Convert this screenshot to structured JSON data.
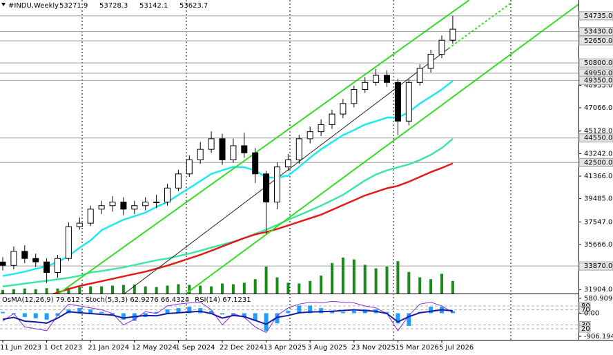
{
  "chart_data": [
    {
      "type": "candlestick",
      "title": "#INDU,Weekly",
      "header_values": [
        "53271.9",
        "53728.3",
        "53142.1",
        "53623.7"
      ],
      "categories": [
        "11 Jun 2023",
        null,
        null,
        null,
        "1 Oct 2023",
        null,
        null,
        null,
        "21 Jan 2024",
        null,
        null,
        null,
        "12 May 2024",
        null,
        null,
        null,
        "1 Sep 2024",
        null,
        null,
        null,
        "22 Dec 2024",
        null,
        null,
        null,
        "13 Apr 2025",
        null,
        null,
        null,
        "3 Aug 2025",
        null,
        null,
        null,
        "23 Nov 2025",
        null,
        null,
        null,
        "15 Mar 2026",
        null,
        null,
        null,
        "5 Jul 2026",
        null
      ],
      "open": [
        34200,
        33920,
        35090,
        34500,
        34210,
        33330,
        34500,
        37150,
        37440,
        38610,
        38900,
        39200,
        38610,
        38900,
        39200,
        39200,
        40370,
        41550,
        42720,
        43600,
        44480,
        42720,
        43900,
        43310,
        41550,
        39200,
        42130,
        42720,
        44480,
        45070,
        45660,
        46540,
        47420,
        48590,
        49180,
        49770,
        49180,
        45950,
        49180,
        50350,
        51530,
        52700
      ],
      "high": [
        34600,
        35500,
        35600,
        34900,
        34500,
        34800,
        37500,
        37900,
        38900,
        39300,
        39700,
        39600,
        39300,
        39600,
        39800,
        40700,
        41900,
        43100,
        44200,
        45100,
        44900,
        44500,
        45000,
        43700,
        41800,
        42500,
        43200,
        44800,
        45500,
        46100,
        46900,
        47800,
        48900,
        49600,
        50300,
        50200,
        49500,
        49500,
        50700,
        51900,
        53100,
        54735
      ],
      "low": [
        33500,
        33600,
        34100,
        33800,
        32450,
        32900,
        34300,
        36900,
        37200,
        38200,
        38400,
        38100,
        38200,
        38500,
        38700,
        38900,
        40100,
        41300,
        42400,
        43300,
        42300,
        42500,
        42900,
        40800,
        36560,
        38600,
        41800,
        42400,
        44100,
        44700,
        45300,
        46200,
        47100,
        48300,
        48900,
        48800,
        44780,
        45600,
        48900,
        50000,
        51200,
        52400
      ],
      "close": [
        33920,
        35090,
        34500,
        34210,
        33330,
        34500,
        37150,
        37440,
        38610,
        38900,
        39200,
        38610,
        38900,
        39200,
        39200,
        40370,
        41550,
        42720,
        43600,
        44480,
        42720,
        43900,
        43310,
        41550,
        39200,
        42130,
        42720,
        44480,
        45070,
        45660,
        46540,
        47420,
        48590,
        49180,
        49770,
        49180,
        45950,
        49180,
        50350,
        51530,
        52700,
        53624
      ],
      "candle_colors": {
        "up": "#ffffff",
        "down": "#000000",
        "outline": "#000000"
      },
      "moving_averages": [
        {
          "color": "#1ee8f0",
          "values": [
            33040,
            33200,
            33400,
            33630,
            33850,
            34210,
            34700,
            35390,
            36000,
            36850,
            37300,
            37730,
            38020,
            38320,
            38800,
            39200,
            39800,
            40370,
            40950,
            41550,
            41850,
            42130,
            42100,
            41840,
            41250,
            41250,
            41400,
            42130,
            42900,
            43600,
            44200,
            44780,
            45200,
            45660,
            45950,
            46240,
            46240,
            46700,
            47420,
            48000,
            48590,
            49300
          ]
        },
        {
          "color": "#3ee6a0",
          "values": [
            32160,
            32280,
            32400,
            32520,
            32640,
            32760,
            32880,
            33050,
            33330,
            33450,
            33600,
            33750,
            33950,
            34150,
            34350,
            34500,
            34700,
            34900,
            35150,
            35400,
            35650,
            35900,
            36200,
            36550,
            36900,
            37300,
            37730,
            38100,
            38500,
            38900,
            39350,
            39800,
            40400,
            41000,
            41500,
            41840,
            42100,
            42350,
            42700,
            43150,
            43700,
            44480
          ]
        },
        {
          "color": "#e41a1a",
          "values": [
            null,
            null,
            null,
            null,
            31350,
            31650,
            31950,
            32200,
            32400,
            32600,
            32800,
            33000,
            33200,
            33400,
            33650,
            33900,
            34200,
            34500,
            34800,
            35150,
            35500,
            35850,
            36200,
            36500,
            36700,
            36950,
            37250,
            37550,
            37850,
            38150,
            38550,
            38950,
            39350,
            39750,
            40050,
            40350,
            40550,
            40900,
            41300,
            41700,
            42050,
            42430
          ]
        }
      ],
      "trendlines": [
        {
          "color": "#33dd22",
          "x": [
            5.1,
            42.5
          ],
          "values": [
            31572,
            56052
          ]
        },
        {
          "color": "#33dd22",
          "x": [
            16.7,
            52.9
          ],
          "values": [
            31572,
            55990
          ]
        },
        {
          "color": "#222222",
          "x": [
            11.1,
            40.6
          ],
          "values": [
            31572,
            52000
          ]
        },
        {
          "color": "#33dd22",
          "x": [
            40.6,
            46.3
          ],
          "values": [
            52000,
            55800
          ],
          "dashed": true
        }
      ],
      "levels": [
        {
          "value": 54735,
          "label": "54735.0"
        },
        {
          "value": 53430,
          "label": "53430.0"
        },
        {
          "value": 52650,
          "label": "52650.0"
        },
        {
          "value": 50800,
          "label": "50800.0"
        },
        {
          "value": 49950,
          "label": "49950.0"
        },
        {
          "value": 49350,
          "label": "49350.0"
        },
        {
          "value": 44550,
          "label": "44550.0"
        },
        {
          "value": 42500,
          "label": "42500.0"
        },
        {
          "value": 33870,
          "label": "33870.0"
        }
      ],
      "level_color": "#a0a0a0",
      "volume": {
        "color": "#1a8a1a",
        "values": [
          10,
          12,
          14,
          12,
          15,
          14,
          16,
          18,
          20,
          20,
          22,
          24,
          25,
          20,
          18,
          22,
          26,
          24,
          22,
          20,
          28,
          26,
          30,
          40,
          75,
          45,
          30,
          28,
          35,
          50,
          85,
          100,
          95,
          80,
          70,
          75,
          90,
          60,
          45,
          40,
          55,
          35
        ]
      },
      "volume_lim": [
        0,
        100
      ],
      "ylim": [
        31572,
        56052
      ],
      "yticks": [
        {
          "value": 48935,
          "label": "48935.0"
        },
        {
          "value": 47066,
          "label": "47066.0"
        },
        {
          "value": 45128,
          "label": "45128.0"
        },
        {
          "value": 43242,
          "label": "43242.0"
        },
        {
          "value": 41366,
          "label": "41366.0"
        },
        {
          "value": 39485,
          "label": "39485.0"
        },
        {
          "value": 37547,
          "label": "37547.0"
        },
        {
          "value": 35666,
          "label": "35666.0"
        },
        {
          "value": 31904,
          "label": "31904.0"
        }
      ]
    },
    {
      "type": "oscillator",
      "labels": [
        "OsMA(12,26,9) 79.612",
        "Stoch(5,3,3) 62.9276 66.4324",
        "RSI(14) 67.1231"
      ],
      "osma": {
        "color": "#1e9fff",
        "values": [
          50,
          -50,
          -150,
          -200,
          -250,
          -100,
          150,
          200,
          150,
          50,
          -100,
          -250,
          -300,
          -150,
          50,
          150,
          200,
          250,
          200,
          100,
          -50,
          -100,
          -150,
          -300,
          -700,
          -400,
          100,
          300,
          300,
          200,
          100,
          50,
          100,
          150,
          150,
          50,
          -400,
          -500,
          50,
          250,
          250,
          80
        ]
      },
      "stoch": {
        "color": "#8a2be2",
        "values": [
          40,
          60,
          25,
          20,
          15,
          55,
          85,
          80,
          75,
          70,
          60,
          30,
          45,
          65,
          60,
          80,
          85,
          88,
          90,
          70,
          30,
          60,
          50,
          25,
          10,
          55,
          75,
          85,
          90,
          88,
          92,
          90,
          88,
          80,
          75,
          60,
          15,
          55,
          85,
          90,
          80,
          63
        ]
      },
      "rsi": {
        "color": "#1a1aa0",
        "values": [
          45,
          50,
          40,
          38,
          35,
          48,
          65,
          62,
          60,
          58,
          56,
          48,
          52,
          55,
          54,
          60,
          62,
          64,
          66,
          60,
          48,
          55,
          52,
          42,
          32,
          50,
          55,
          62,
          64,
          65,
          66,
          68,
          70,
          68,
          66,
          60,
          38,
          52,
          62,
          66,
          70,
          67
        ]
      },
      "ylim": [
        -906.194,
        580.909
      ],
      "yticks": [
        {
          "value": 580.909,
          "label": "580.909"
        },
        {
          "value": 0,
          "label": "0.00"
        },
        {
          "value": -906.194,
          "label": "-906.194"
        }
      ],
      "levels_lim": [
        0,
        100
      ],
      "levels": [
        80,
        70,
        30,
        20
      ]
    }
  ]
}
